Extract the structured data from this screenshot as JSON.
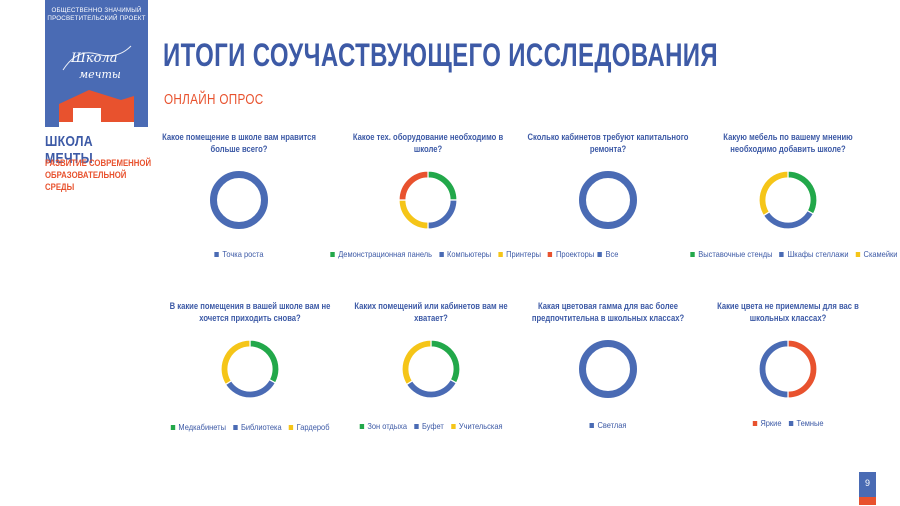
{
  "brand": {
    "top_line1": "ОБЩЕСТВЕННО ЗНАЧИМЫЙ",
    "top_line2": "ПРОСВЕТИТЕЛЬСКИЙ ПРОЕКТ",
    "logo_script_line1": "Школа",
    "logo_script_line2": "мечты",
    "name": "ШКОЛА МЕЧТЫ",
    "sub_line1": "РАЗВИТИЕ СОВРЕМЕННОЙ",
    "sub_line2": "ОБРАЗОВАТЕЛЬНОЙ СРЕДЫ"
  },
  "title": "ИТОГИ СОУЧАСТВУЮЩЕГО ИССЛЕДОВАНИЯ",
  "subtitle": "ОНЛАЙН ОПРОС",
  "page_number": "9",
  "colors": {
    "blue": "#4a6bb4",
    "green": "#22a84a",
    "yellow": "#f5c518",
    "red": "#e8522e",
    "brand_blue": "#4a6bb4",
    "brand_orange": "#e8522e"
  },
  "chart_data": [
    {
      "type": "pie",
      "title": "Какое помещение в школе вам нравится больше всего?",
      "categories": [
        "Точка роста"
      ],
      "values": [
        100
      ],
      "colors": [
        "#4a6bb4"
      ]
    },
    {
      "type": "pie",
      "title": "Какое тех. оборудование  необходимо в школе?",
      "categories": [
        "Демонстрационная панель",
        "Компьютеры",
        "Принтеры",
        "Проекторы"
      ],
      "values": [
        25,
        25,
        25,
        25
      ],
      "colors": [
        "#22a84a",
        "#4a6bb4",
        "#f5c518",
        "#e8522e"
      ]
    },
    {
      "type": "pie",
      "title": "Сколько кабинетов требуют капитального ремонта?",
      "categories": [
        "Все"
      ],
      "values": [
        100
      ],
      "colors": [
        "#4a6bb4"
      ]
    },
    {
      "type": "pie",
      "title": "Какую мебель по вашему мнению необходимо добавить школе?",
      "categories": [
        "Выставочные стенды",
        "Шкафы стеллажи",
        "Скамейки"
      ],
      "values": [
        33,
        33,
        34
      ],
      "colors": [
        "#22a84a",
        "#4a6bb4",
        "#f5c518"
      ]
    },
    {
      "type": "pie",
      "title": "В какие помещения в вашей школе вам не хочется приходить снова?",
      "categories": [
        "Медкабинеты",
        "Библиотека",
        "Гардероб"
      ],
      "values": [
        33,
        33,
        34
      ],
      "colors": [
        "#22a84a",
        "#4a6bb4",
        "#f5c518"
      ]
    },
    {
      "type": "pie",
      "title": "Каких помещений или кабинетов вам не хватает?",
      "categories": [
        "Зон отдыха",
        "Буфет",
        "Учительская"
      ],
      "values": [
        33,
        33,
        34
      ],
      "colors": [
        "#22a84a",
        "#4a6bb4",
        "#f5c518"
      ]
    },
    {
      "type": "pie",
      "title": "Какая цветовая гамма для вас более предпочтительна в школьных классах?",
      "categories": [
        "Светлая"
      ],
      "values": [
        100
      ],
      "colors": [
        "#4a6bb4"
      ]
    },
    {
      "type": "pie",
      "title": "Какие цвета не приемлемы для вас в школьных классах?",
      "categories": [
        "Яркие",
        "Темные"
      ],
      "values": [
        50,
        50
      ],
      "colors": [
        "#e8522e",
        "#4a6bb4"
      ]
    }
  ]
}
